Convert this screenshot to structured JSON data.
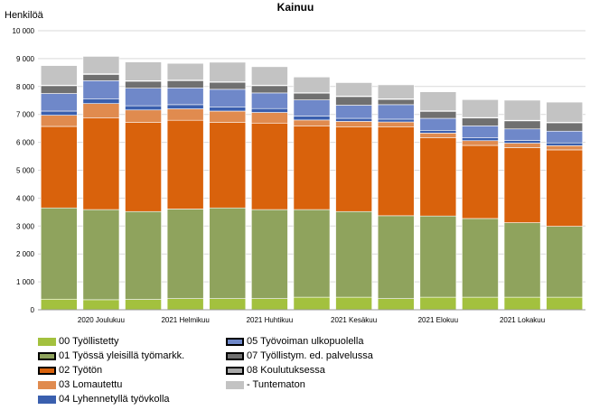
{
  "chart_data": {
    "type": "bar",
    "stacked": true,
    "title": "Kainuu",
    "ylabel": "Henkilöä",
    "ylim": [
      0,
      10000
    ],
    "yticks": [
      "0",
      "1 000",
      "2 000",
      "3 000",
      "4 000",
      "5 000",
      "6 000",
      "7 000",
      "8 000",
      "9 000",
      "10 000"
    ],
    "grid": true,
    "legend_position": "bottom",
    "categories": [
      "",
      "2020 Joulukuu",
      "",
      "2021 Helmikuu",
      "",
      "2021 Huhtikuu",
      "",
      "2021 Kesäkuu",
      "",
      "2021 Elokuu",
      "",
      "2021 Lokakuu",
      ""
    ],
    "series": [
      {
        "name": "00 Työllistetty",
        "color": "#a3c13e",
        "values": [
          380,
          360,
          370,
          400,
          400,
          400,
          450,
          450,
          400,
          450,
          450,
          450,
          450
        ]
      },
      {
        "name": "01 Työssä yleisillä työmarkk.",
        "color": "#8fa35d",
        "values": [
          3270,
          3230,
          3150,
          3210,
          3250,
          3190,
          3140,
          3070,
          2970,
          2910,
          2820,
          2670,
          2540
        ]
      },
      {
        "name": "02 Työtön",
        "color": "#d9620c",
        "values": [
          2920,
          3280,
          3200,
          3180,
          3070,
          3100,
          2990,
          3040,
          3190,
          2810,
          2620,
          2690,
          2740
        ]
      },
      {
        "name": "03 Lomautettu",
        "color": "#e08b4f",
        "values": [
          400,
          520,
          440,
          410,
          400,
          380,
          220,
          190,
          170,
          160,
          170,
          160,
          150
        ]
      },
      {
        "name": "04 Lyhennetyllä työvkolla",
        "color": "#3a5fae",
        "values": [
          150,
          160,
          150,
          150,
          140,
          140,
          140,
          110,
          100,
          100,
          100,
          100,
          100
        ]
      },
      {
        "name": "05 Työvoiman ulkopuolella",
        "color": "#6f88c9",
        "values": [
          630,
          660,
          630,
          600,
          640,
          560,
          580,
          470,
          520,
          430,
          430,
          410,
          420
        ]
      },
      {
        "name": "07 Työllistym. ed. palvelussa",
        "color": "#707070",
        "values": [
          280,
          220,
          250,
          260,
          250,
          260,
          240,
          310,
          190,
          250,
          280,
          290,
          300
        ]
      },
      {
        "name": "08 Koulutuksessa",
        "color": "#a8a8a8",
        "values": [
          20,
          30,
          20,
          20,
          20,
          20,
          20,
          20,
          20,
          20,
          20,
          20,
          20
        ]
      },
      {
        "name": "- Tuntematon",
        "color": "#c3c3c3",
        "values": [
          700,
          620,
          670,
          600,
          700,
          660,
          560,
          480,
          500,
          680,
          640,
          720,
          720
        ]
      }
    ]
  }
}
